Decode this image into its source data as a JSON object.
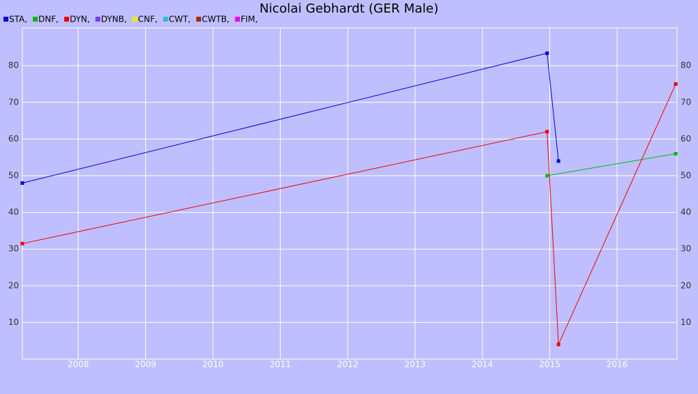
{
  "chart_data": {
    "type": "line",
    "title": "Nicolai Gebhardt (GER Male)",
    "series": [
      {
        "name": "STA,",
        "color": "#0000dd",
        "x": [
          2007.17,
          2014.96,
          2015.13
        ],
        "values": [
          48,
          83.4,
          54
        ]
      },
      {
        "name": "DNF,",
        "color": "#00bb00",
        "x": [
          2014.96,
          2016.87
        ],
        "values": [
          50,
          56
        ]
      },
      {
        "name": "DYN,",
        "color": "#ee0000",
        "x": [
          2007.17,
          2014.96,
          2015.13,
          2016.87
        ],
        "values": [
          31.5,
          62,
          4,
          75
        ]
      },
      {
        "name": "DYNB,",
        "color": "#7040ee",
        "x": [],
        "values": []
      },
      {
        "name": "CNF,",
        "color": "#eeee00",
        "x": [],
        "values": []
      },
      {
        "name": "CWT,",
        "color": "#30bbcc",
        "x": [],
        "values": []
      },
      {
        "name": "CWTB,",
        "color": "#993300",
        "x": [],
        "values": []
      },
      {
        "name": "FIM,",
        "color": "#ee00ee",
        "x": [],
        "values": []
      }
    ],
    "xlim": [
      2007.17,
      2016.89
    ],
    "xticks": [
      2008,
      2009,
      2010,
      2011,
      2012,
      2013,
      2014,
      2015,
      2016
    ],
    "ylim": [
      0,
      90.3
    ],
    "yticks": [
      10,
      20,
      30,
      40,
      50,
      60,
      70,
      80
    ],
    "grid": true
  }
}
